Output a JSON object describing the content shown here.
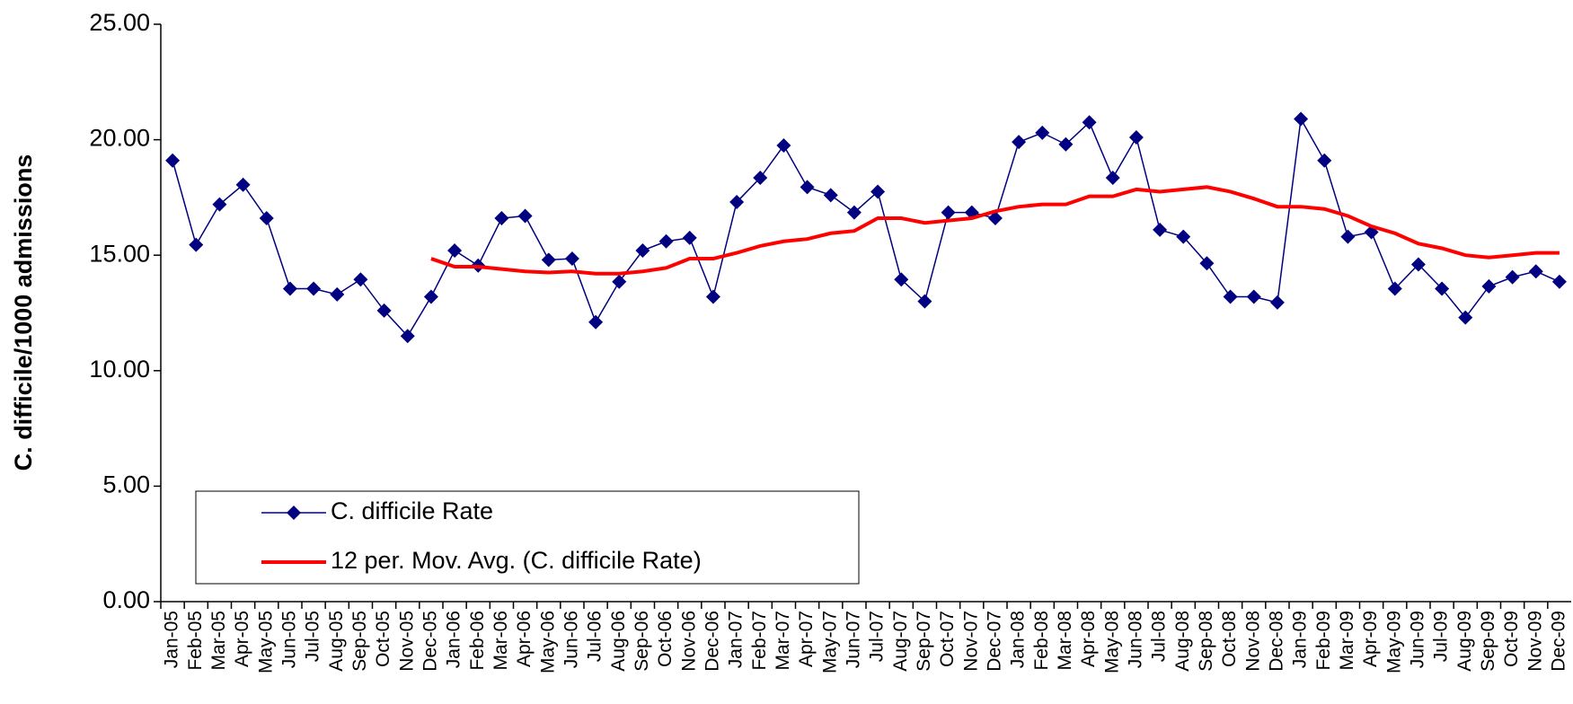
{
  "chart_data": {
    "type": "line",
    "ylabel": "C. difficile/1000 admissions",
    "categories": [
      "Jan-05",
      "Feb-05",
      "Mar-05",
      "Apr-05",
      "May-05",
      "Jun-05",
      "Jul-05",
      "Aug-05",
      "Sep-05",
      "Oct-05",
      "Nov-05",
      "Dec-05",
      "Jan-06",
      "Feb-06",
      "Mar-06",
      "Apr-06",
      "May-06",
      "Jun-06",
      "Jul-06",
      "Aug-06",
      "Sep-06",
      "Oct-06",
      "Nov-06",
      "Dec-06",
      "Jan-07",
      "Feb-07",
      "Mar-07",
      "Apr-07",
      "May-07",
      "Jun-07",
      "Jul-07",
      "Aug-07",
      "Sep-07",
      "Oct-07",
      "Nov-07",
      "Dec-07",
      "Jan-08",
      "Feb-08",
      "Mar-08",
      "Apr-08",
      "May-08",
      "Jun-08",
      "Jul-08",
      "Aug-08",
      "Sep-08",
      "Oct-08",
      "Nov-08",
      "Dec-08",
      "Jan-09",
      "Feb-09",
      "Mar-09",
      "Apr-09",
      "May-09",
      "Jun-09",
      "Jul-09",
      "Aug-09",
      "Sep-09",
      "Oct-09",
      "Nov-09",
      "Dec-09"
    ],
    "series": [
      {
        "name": "C. difficile Rate",
        "color": "#000080",
        "marker": "diamond",
        "values": [
          19.1,
          15.45,
          17.2,
          18.05,
          16.6,
          13.55,
          13.55,
          13.3,
          13.95,
          12.6,
          11.5,
          13.2,
          15.2,
          14.55,
          16.6,
          16.7,
          14.8,
          14.85,
          12.1,
          13.85,
          15.2,
          15.6,
          15.75,
          13.2,
          17.3,
          18.35,
          19.75,
          17.95,
          17.6,
          16.85,
          17.75,
          13.95,
          13.0,
          16.85,
          16.85,
          16.6,
          19.9,
          20.3,
          19.8,
          20.75,
          18.35,
          20.1,
          16.1,
          15.8,
          14.65,
          13.2,
          13.2,
          12.95,
          20.9,
          19.1,
          15.8,
          16.0,
          13.55,
          14.6,
          13.55,
          12.3,
          13.65,
          14.05,
          14.3,
          13.85
        ]
      },
      {
        "name": "12 per. Mov. Avg. (C. difficile Rate)",
        "color": "#ff0000",
        "values": [
          null,
          null,
          null,
          null,
          null,
          null,
          null,
          null,
          null,
          null,
          null,
          14.85,
          14.5,
          14.5,
          14.4,
          14.3,
          14.25,
          14.3,
          14.2,
          14.2,
          14.3,
          14.45,
          14.85,
          14.85,
          15.1,
          15.4,
          15.6,
          15.7,
          15.95,
          16.05,
          16.6,
          16.6,
          16.4,
          16.5,
          16.6,
          16.9,
          17.1,
          17.2,
          17.2,
          17.55,
          17.55,
          17.85,
          17.75,
          17.85,
          17.95,
          17.75,
          17.45,
          17.1,
          17.1,
          17.0,
          16.7,
          16.25,
          15.95,
          15.5,
          15.3,
          15.0,
          14.9,
          15.0,
          15.1,
          15.1
        ]
      }
    ],
    "ylim": [
      0,
      25
    ],
    "yticks": [
      {
        "value": 0,
        "label": "0.00"
      },
      {
        "value": 5,
        "label": "5.00"
      },
      {
        "value": 10,
        "label": "10.00"
      },
      {
        "value": 15,
        "label": "15.00"
      },
      {
        "value": 20,
        "label": "20.00"
      },
      {
        "value": 25,
        "label": "25.00"
      }
    ],
    "grid": false,
    "legend": "lower left"
  }
}
